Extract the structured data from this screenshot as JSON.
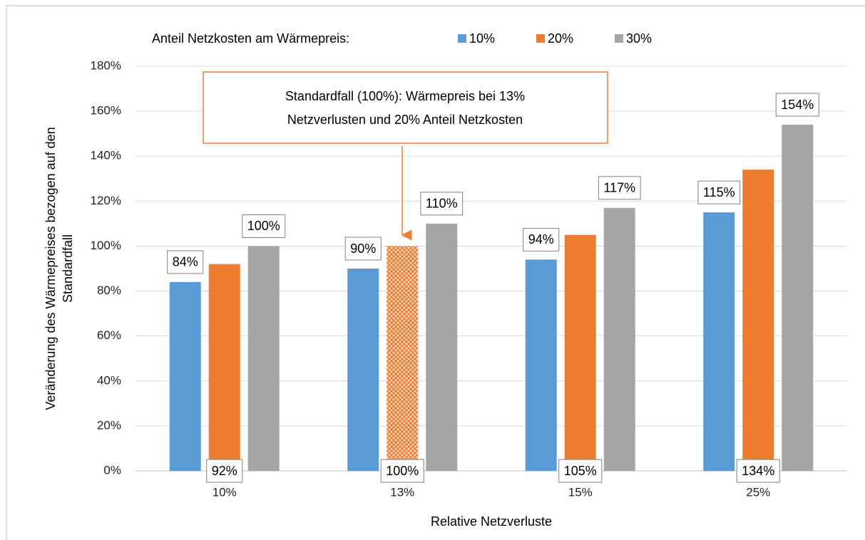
{
  "chart_data": {
    "type": "bar",
    "legend_title": "Anteil Netzkosten am Wärmepreis:",
    "xlabel": "Relative Netzverluste",
    "ylabel": [
      "Veränderung des Wärmepreises bezogen auf den",
      "Standardfall"
    ],
    "annotation": [
      "Standardfall (100%): Wärmepreis bei 13%",
      "Netzverlusten und 20% Anteil Netzkosten"
    ],
    "categories": [
      "10%",
      "13%",
      "15%",
      "25%"
    ],
    "series": [
      {
        "name": "10%",
        "color": "#5b9bd5",
        "values": [
          84,
          90,
          94,
          115
        ],
        "value_labels": [
          "84%",
          "90%",
          "94%",
          "115%"
        ],
        "label_position": "outside"
      },
      {
        "name": "20%",
        "color": "#ed7d31",
        "values": [
          92,
          100,
          105,
          134
        ],
        "value_labels": [
          "92%",
          "100%",
          "105%",
          "134%"
        ],
        "label_position": "base"
      },
      {
        "name": "30%",
        "color": "#a5a5a5",
        "values": [
          100,
          110,
          117,
          154
        ],
        "value_labels": [
          "100%",
          "110%",
          "117%",
          "154%"
        ],
        "label_position": "outside"
      }
    ],
    "hatched": {
      "series": 1,
      "index": 1
    },
    "ylim": [
      0,
      180
    ],
    "yticks": [
      {
        "value": 0,
        "label": "0%"
      },
      {
        "value": 20,
        "label": "20%"
      },
      {
        "value": 40,
        "label": "40%"
      },
      {
        "value": 60,
        "label": "60%"
      },
      {
        "value": 80,
        "label": "80%"
      },
      {
        "value": 100,
        "label": "100%"
      },
      {
        "value": 120,
        "label": "120%"
      },
      {
        "value": 140,
        "label": "140%"
      },
      {
        "value": 160,
        "label": "160%"
      },
      {
        "value": 180,
        "label": "180%"
      }
    ],
    "grid": true
  }
}
